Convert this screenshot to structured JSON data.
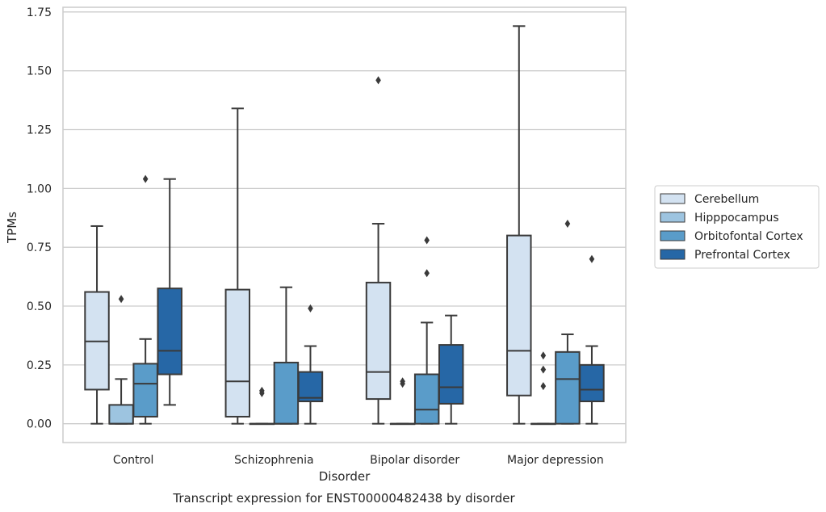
{
  "chart_data": {
    "type": "box",
    "xlabel": "Disorder",
    "ylabel": "TPMs",
    "caption": "Transcript expression for ENST00000482438 by disorder",
    "ylim": [
      -0.08,
      1.77
    ],
    "yticks": [
      0.0,
      0.25,
      0.5,
      0.75,
      1.0,
      1.25,
      1.5,
      1.75
    ],
    "ytick_labels": [
      "0.00",
      "0.25",
      "0.50",
      "0.75",
      "1.00",
      "1.25",
      "1.50",
      "1.75"
    ],
    "grid": "horizontal",
    "legend_position": "right",
    "categories": [
      "Control",
      "Schizophrenia",
      "Bipolar disorder",
      "Major depression"
    ],
    "series": [
      {
        "name": "Cerebellum",
        "color": "#d3e2f1",
        "boxes": [
          {
            "min": 0.0,
            "q1": 0.145,
            "median": 0.35,
            "q3": 0.56,
            "max": 0.84,
            "outliers": []
          },
          {
            "min": 0.0,
            "q1": 0.03,
            "median": 0.18,
            "q3": 0.57,
            "max": 1.34,
            "outliers": []
          },
          {
            "min": 0.0,
            "q1": 0.105,
            "median": 0.22,
            "q3": 0.6,
            "max": 0.85,
            "outliers": [
              1.46
            ]
          },
          {
            "min": 0.0,
            "q1": 0.12,
            "median": 0.31,
            "q3": 0.8,
            "max": 1.69,
            "outliers": []
          }
        ]
      },
      {
        "name": "Hipppocampus",
        "color": "#9dc4e0",
        "boxes": [
          {
            "min": 0.0,
            "q1": 0.0,
            "median": 0.0,
            "q3": 0.08,
            "max": 0.19,
            "outliers": [
              0.53
            ]
          },
          {
            "min": 0.0,
            "q1": 0.0,
            "median": 0.0,
            "q3": 0.0,
            "max": 0.0,
            "outliers": [
              0.13,
              0.14
            ]
          },
          {
            "min": 0.0,
            "q1": 0.0,
            "median": 0.0,
            "q3": 0.0,
            "max": 0.0,
            "outliers": [
              0.17,
              0.18
            ]
          },
          {
            "min": 0.0,
            "q1": 0.0,
            "median": 0.0,
            "q3": 0.0,
            "max": 0.0,
            "outliers": [
              0.16,
              0.23,
              0.29
            ]
          }
        ]
      },
      {
        "name": "Orbitofontal Cortex",
        "color": "#5a9cc9",
        "boxes": [
          {
            "min": 0.0,
            "q1": 0.03,
            "median": 0.17,
            "q3": 0.255,
            "max": 0.36,
            "outliers": [
              1.04
            ]
          },
          {
            "min": 0.0,
            "q1": 0.0,
            "median": 0.0,
            "q3": 0.26,
            "max": 0.58,
            "outliers": []
          },
          {
            "min": 0.0,
            "q1": 0.0,
            "median": 0.06,
            "q3": 0.21,
            "max": 0.43,
            "outliers": [
              0.64,
              0.78
            ]
          },
          {
            "min": 0.0,
            "q1": 0.0,
            "median": 0.19,
            "q3": 0.305,
            "max": 0.38,
            "outliers": [
              0.85
            ]
          }
        ]
      },
      {
        "name": "Prefrontal Cortex",
        "color": "#2667a6",
        "boxes": [
          {
            "min": 0.08,
            "q1": 0.21,
            "median": 0.31,
            "q3": 0.575,
            "max": 1.04,
            "outliers": []
          },
          {
            "min": 0.0,
            "q1": 0.095,
            "median": 0.11,
            "q3": 0.22,
            "max": 0.33,
            "outliers": [
              0.49
            ]
          },
          {
            "min": 0.0,
            "q1": 0.085,
            "median": 0.155,
            "q3": 0.335,
            "max": 0.46,
            "outliers": []
          },
          {
            "min": 0.0,
            "q1": 0.095,
            "median": 0.145,
            "q3": 0.25,
            "max": 0.33,
            "outliers": [
              0.7
            ]
          }
        ]
      }
    ]
  }
}
